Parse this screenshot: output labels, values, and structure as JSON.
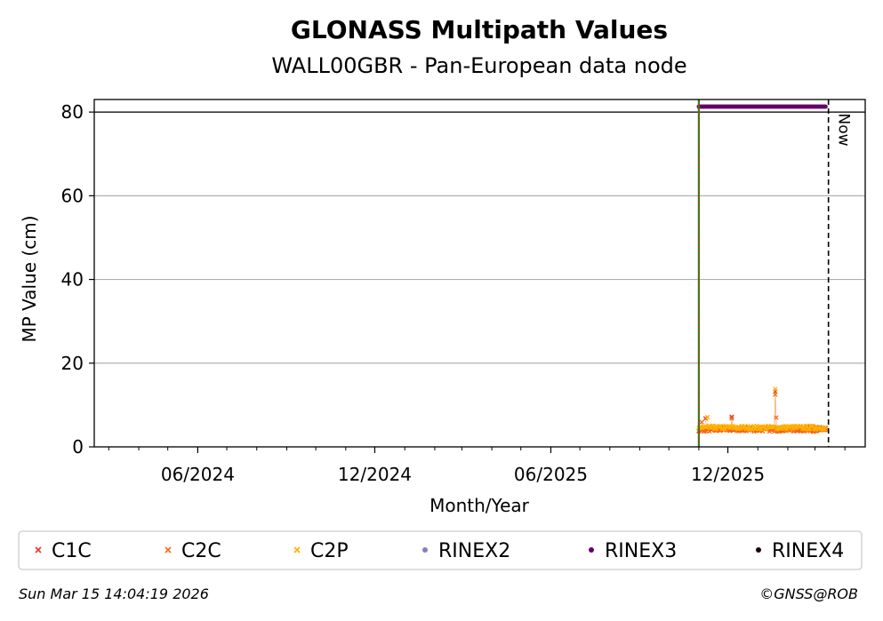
{
  "chart_data": {
    "type": "scatter",
    "title": "GLONASS Multipath Values",
    "subtitle": "WALL00GBR - Pan-European data node",
    "xlabel": "Month/Year",
    "ylabel": "MP Value (cm)",
    "xlim": [
      "2024-02-15",
      "2026-04-22"
    ],
    "ylim": [
      0,
      83
    ],
    "yticks": [
      0,
      20,
      40,
      60,
      80
    ],
    "xticks": [
      {
        "date": "2024-06-01",
        "label": "06/2024"
      },
      {
        "date": "2024-12-01",
        "label": "12/2024"
      },
      {
        "date": "2025-06-01",
        "label": "06/2025"
      },
      {
        "date": "2025-12-01",
        "label": "12/2025"
      }
    ],
    "grid": "y",
    "hline": 80,
    "start_line": "2025-11-01",
    "now_line": {
      "date": "2026-03-15",
      "label": "Now"
    },
    "data_start": "2025-11-01",
    "data_end": "2026-03-12",
    "series": [
      {
        "name": "C1C",
        "color": "#e8382b",
        "marker": "x",
        "baseline": 4.3,
        "spikes": [
          {
            "date": "2025-11-08",
            "value": 6.8
          },
          {
            "date": "2025-12-05",
            "value": 7.2
          },
          {
            "date": "2026-01-19",
            "value": 13.2
          }
        ]
      },
      {
        "name": "C2C",
        "color": "#f26a1b",
        "marker": "x",
        "baseline": 4.1,
        "spikes": [
          {
            "date": "2025-11-04",
            "value": 5.9
          },
          {
            "date": "2025-12-05",
            "value": 6.8
          },
          {
            "date": "2026-01-19",
            "value": 12.5
          },
          {
            "date": "2026-01-20",
            "value": 7.0
          }
        ]
      },
      {
        "name": "C2P",
        "color": "#ffb000",
        "marker": "x",
        "baseline": 4.6,
        "spikes": [
          {
            "date": "2025-11-10",
            "value": 7.1
          },
          {
            "date": "2026-01-19",
            "value": 13.8
          }
        ]
      },
      {
        "name": "RINEX2",
        "color": "#8080c0",
        "marker": "dot",
        "values": []
      },
      {
        "name": "RINEX3",
        "color": "#660066",
        "marker": "dot",
        "constant": 81.3
      },
      {
        "name": "RINEX4",
        "color": "#1a0010",
        "marker": "dot",
        "values": []
      }
    ]
  },
  "footer": {
    "timestamp": "Sun Mar 15 14:04:19 2026",
    "credit": "©GNSS@ROB"
  }
}
